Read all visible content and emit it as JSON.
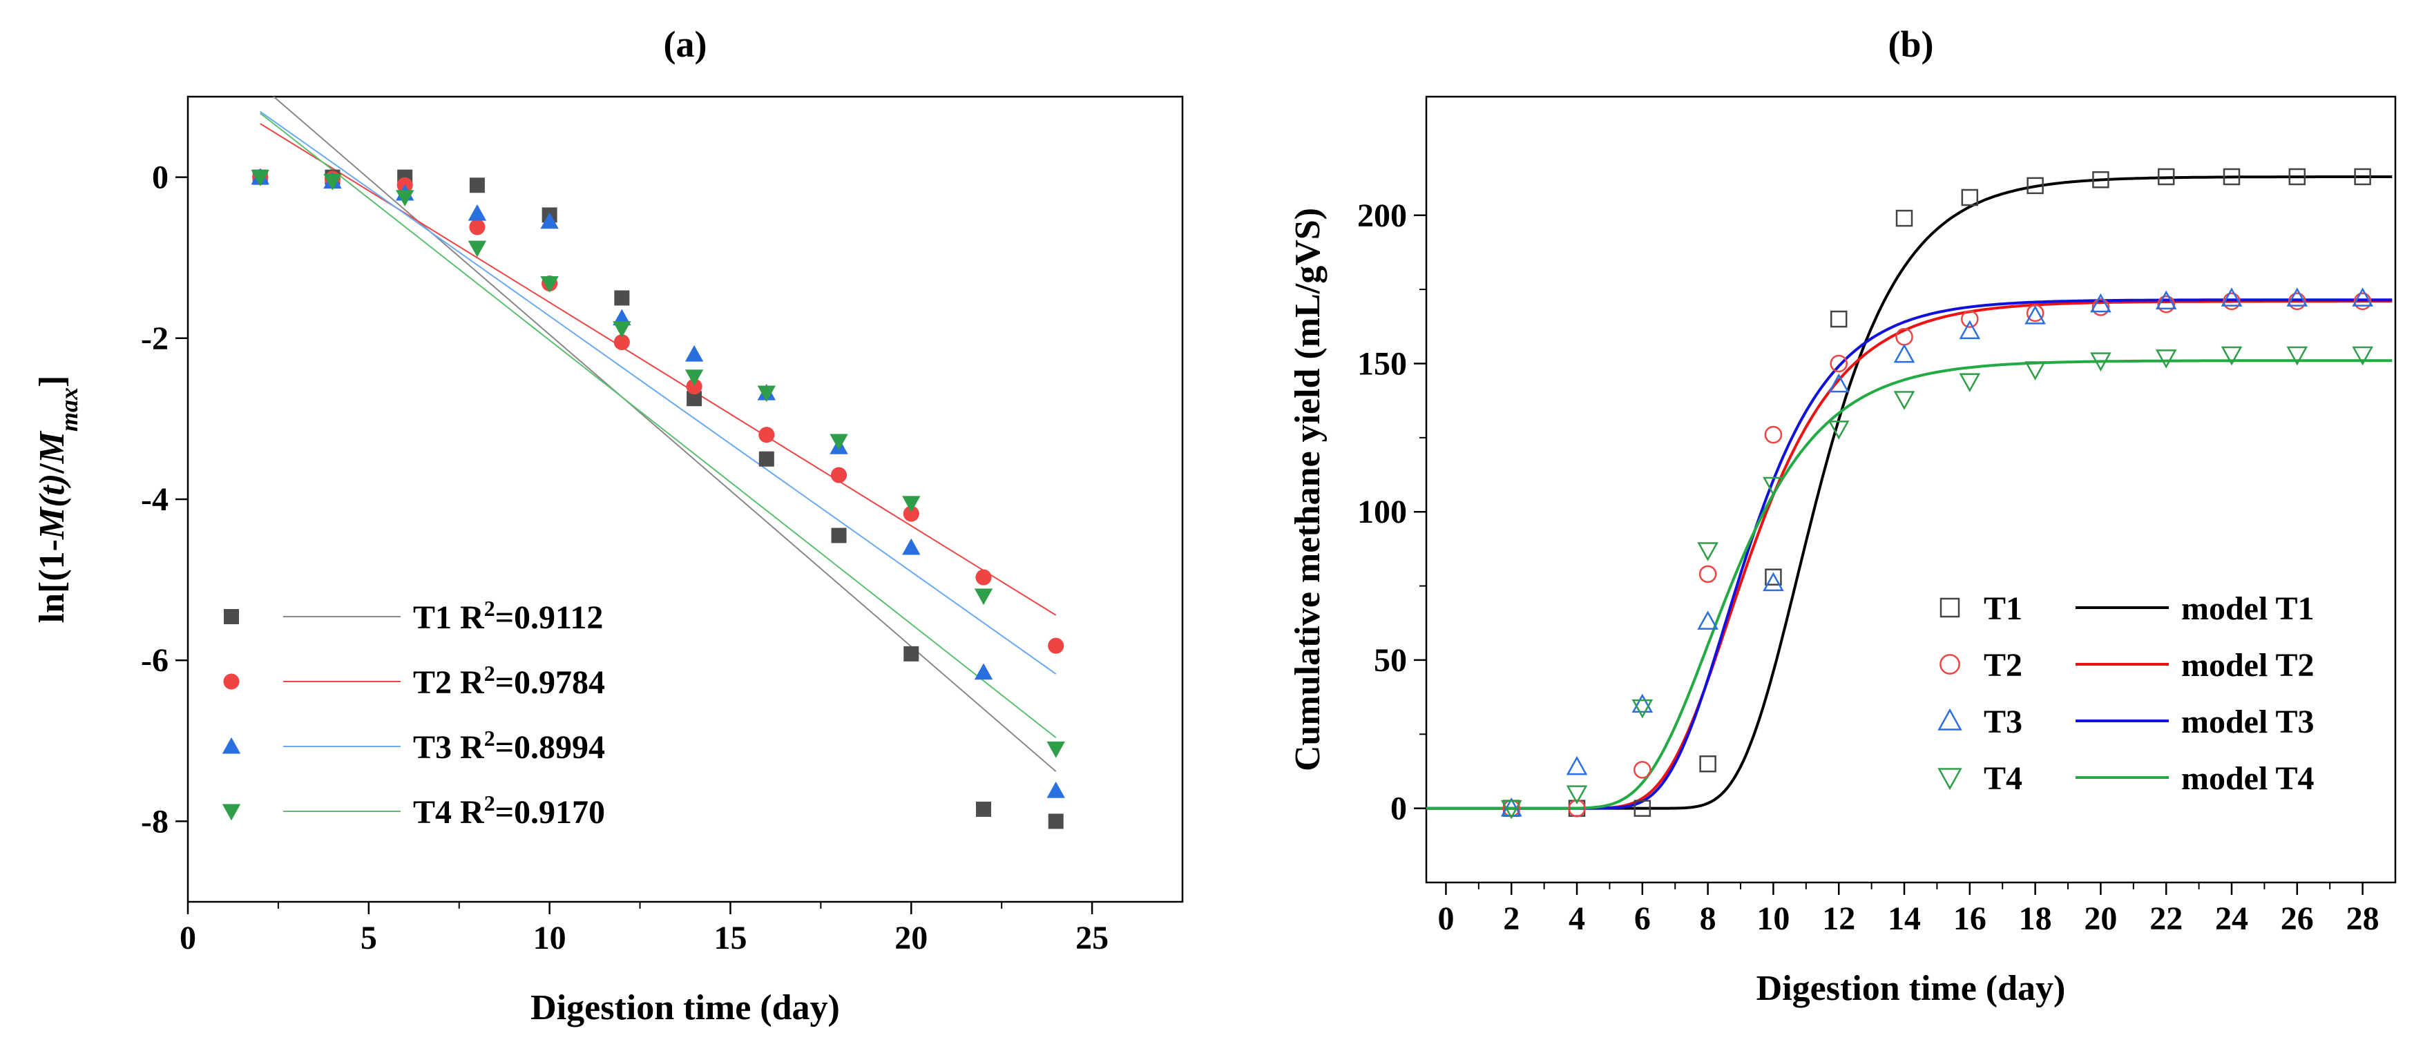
{
  "chart_data": [
    {
      "panel_label": "(a)",
      "type": "scatter",
      "title": "(a)",
      "xlabel": "Digestion time (day)",
      "ylabel": {
        "pre": "ln[(1-",
        "it1": "M(t)",
        "mid": "/",
        "it2": "M",
        "sub": "max",
        "post": "]"
      },
      "xlim": [
        0,
        27.5
      ],
      "ylim": [
        -9,
        1
      ],
      "xticks": [
        0,
        5,
        10,
        15,
        20,
        25
      ],
      "yticks": [
        0,
        -2,
        -4,
        -6,
        -8
      ],
      "grid": false,
      "legend_position": "bottom-left",
      "series": [
        {
          "name": "T1",
          "r2_label": "R",
          "r2_sup": "2",
          "r2_value": "=0.9112",
          "color": "#4d4d4d",
          "marker": "square",
          "x": [
            2,
            4,
            6,
            8,
            10,
            12,
            14,
            16,
            18,
            20,
            22,
            24
          ],
          "y": [
            0,
            0,
            0,
            -0.1,
            -0.47,
            -1.5,
            -2.75,
            -3.5,
            -4.45,
            -5.92,
            -7.85,
            -8.0
          ],
          "fit": {
            "slope": -0.3875,
            "intercept": 1.92,
            "x_range": [
              1.5,
              24
            ],
            "color": "#888888"
          }
        },
        {
          "name": "T2",
          "r2_label": "R",
          "r2_sup": "2",
          "r2_value": "=0.9784",
          "color": "#ee4444",
          "marker": "circle",
          "x": [
            2,
            4,
            6,
            8,
            10,
            12,
            14,
            16,
            18,
            20,
            22,
            24
          ],
          "y": [
            0,
            -0.02,
            -0.1,
            -0.62,
            -1.32,
            -2.05,
            -2.6,
            -3.2,
            -3.7,
            -4.18,
            -4.97,
            -5.82
          ],
          "fit": {
            "slope": -0.2775,
            "intercept": 1.22,
            "x_range": [
              2,
              24
            ],
            "color": "#ee4444"
          }
        },
        {
          "name": "T3",
          "r2_label": "R",
          "r2_sup": "2",
          "r2_value": "=0.8994",
          "color": "#2a6fe0",
          "marker": "triangle-up",
          "x": [
            2,
            4,
            6,
            8,
            10,
            12,
            14,
            16,
            18,
            20,
            22,
            24
          ],
          "y": [
            0,
            -0.05,
            -0.2,
            -0.45,
            -0.55,
            -1.75,
            -2.2,
            -2.68,
            -3.35,
            -4.6,
            -6.15,
            -7.62
          ],
          "fit": {
            "slope": -0.3175,
            "intercept": 1.45,
            "x_range": [
              2,
              24
            ],
            "color": "#6aaaf0"
          }
        },
        {
          "name": "T4",
          "r2_label": "R",
          "r2_sup": "2",
          "r2_value": "=0.9170",
          "color": "#2e9e48",
          "marker": "triangle-down",
          "x": [
            2,
            4,
            6,
            8,
            10,
            12,
            14,
            16,
            18,
            20,
            22,
            24
          ],
          "y": [
            0,
            -0.05,
            -0.25,
            -0.88,
            -1.32,
            -1.88,
            -2.48,
            -2.68,
            -3.28,
            -4.05,
            -5.2,
            -7.1
          ],
          "fit": {
            "slope": -0.3525,
            "intercept": 1.5,
            "x_range": [
              2,
              24
            ],
            "color": "#5ac070"
          }
        }
      ]
    },
    {
      "panel_label": "(b)",
      "type": "scatter",
      "title": "(b)",
      "xlabel": "Digestion time (day)",
      "ylabel": "Cumulative methane yield (mL/gVS)",
      "xlim": [
        -0.6,
        29
      ],
      "ylim": [
        -25,
        240
      ],
      "xticks": [
        0,
        2,
        4,
        6,
        8,
        10,
        12,
        14,
        16,
        18,
        20,
        22,
        24,
        26,
        28
      ],
      "yticks": [
        0,
        50,
        100,
        150,
        200
      ],
      "grid": false,
      "legend_position": "bottom-right",
      "series": [
        {
          "name": "T1",
          "model_name": "model T1",
          "color": "#444444",
          "line_color": "#000000",
          "marker": "square-open",
          "x": [
            2,
            4,
            6,
            8,
            10,
            12,
            14,
            16,
            18,
            20,
            22,
            24,
            26,
            28
          ],
          "y": [
            0,
            0,
            0,
            15,
            78,
            165,
            199,
            206,
            210,
            212,
            213,
            213,
            213,
            213
          ],
          "model": {
            "ymax": 213,
            "rmax": 45,
            "lag": 9.0
          }
        },
        {
          "name": "T2",
          "model_name": "model T2",
          "color": "#ee4444",
          "line_color": "#ee1111",
          "marker": "circle-open",
          "x": [
            2,
            4,
            6,
            8,
            10,
            12,
            14,
            16,
            18,
            20,
            22,
            24,
            26,
            28
          ],
          "y": [
            0,
            0,
            13,
            79,
            126,
            150,
            159,
            165,
            167,
            169,
            170,
            171,
            171,
            171
          ],
          "model": {
            "ymax": 171,
            "rmax": 33,
            "lag": 6.7
          }
        },
        {
          "name": "T3",
          "model_name": "model T3",
          "color": "#2a6fe0",
          "line_color": "#1111dd",
          "marker": "triangle-up-open",
          "x": [
            2,
            4,
            6,
            8,
            10,
            12,
            14,
            16,
            18,
            20,
            22,
            24,
            26,
            28
          ],
          "y": [
            0,
            14,
            35,
            63,
            76,
            143,
            153,
            161,
            166,
            170,
            171,
            172,
            172,
            172
          ],
          "model": {
            "ymax": 171.5,
            "rmax": 36,
            "lag": 6.8
          }
        },
        {
          "name": "T4",
          "model_name": "model T4",
          "color": "#2e9e48",
          "line_color": "#22aa44",
          "marker": "triangle-down-open",
          "x": [
            2,
            4,
            6,
            8,
            10,
            12,
            14,
            16,
            18,
            20,
            22,
            24,
            26,
            28
          ],
          "y": [
            0,
            5,
            34,
            87,
            109,
            128,
            138,
            144,
            148,
            151,
            152,
            153,
            153,
            153
          ],
          "model": {
            "ymax": 151,
            "rmax": 29,
            "lag": 6.1
          }
        }
      ]
    }
  ]
}
